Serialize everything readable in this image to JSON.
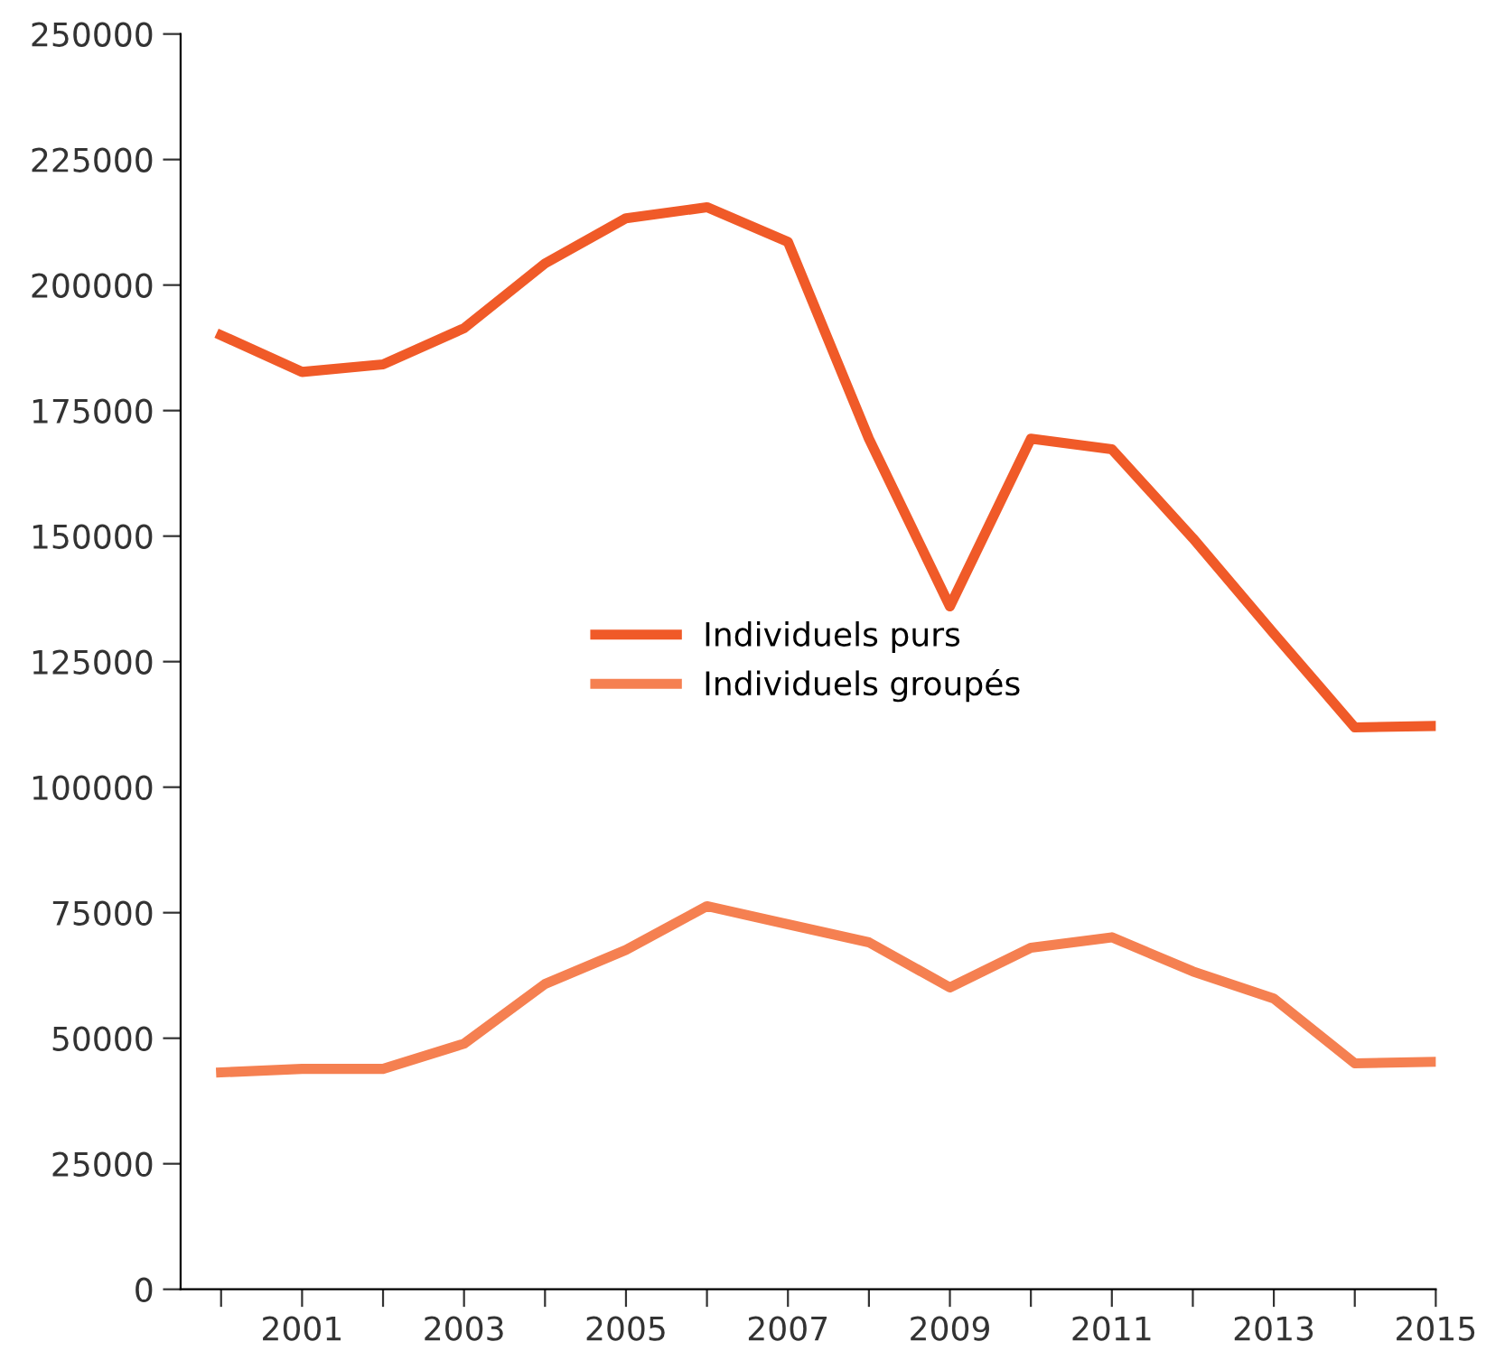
{
  "chart_data": {
    "type": "line",
    "x": [
      2000,
      2001,
      2002,
      2003,
      2004,
      2005,
      2006,
      2007,
      2008,
      2009,
      2010,
      2011,
      2012,
      2013,
      2014,
      2015
    ],
    "series": [
      {
        "name": "Individuels purs",
        "color": "#f05a28",
        "values": [
          190000,
          182700,
          184200,
          191400,
          204300,
          213300,
          215500,
          208600,
          169400,
          136000,
          169400,
          167300,
          149600,
          130600,
          111900,
          112200
        ]
      },
      {
        "name": "Individuels groupés",
        "color": "#f58051",
        "values": [
          43200,
          43900,
          43900,
          48900,
          60800,
          67600,
          76300,
          72700,
          69100,
          60100,
          68000,
          70100,
          63300,
          57900,
          45000,
          45300
        ]
      }
    ],
    "xlim": [
      1999.5,
      2015
    ],
    "xticks": [
      {
        "value": 2000,
        "label": null
      },
      2001,
      {
        "value": 2002,
        "label": null
      },
      2003,
      {
        "value": 2004,
        "label": null
      },
      2005,
      {
        "value": 2006,
        "label": null
      },
      2007,
      {
        "value": 2008,
        "label": null
      },
      2009,
      {
        "value": 2010,
        "label": null
      },
      2011,
      {
        "value": 2012,
        "label": null
      },
      2013,
      {
        "value": 2014,
        "label": null
      },
      2015
    ],
    "ylim": [
      0,
      250000
    ],
    "yticks": [
      0,
      25000,
      50000,
      75000,
      100000,
      125000,
      150000,
      175000,
      200000,
      225000,
      250000
    ],
    "grid": false,
    "legend": "center",
    "marker": "none",
    "line_style": "solid"
  }
}
